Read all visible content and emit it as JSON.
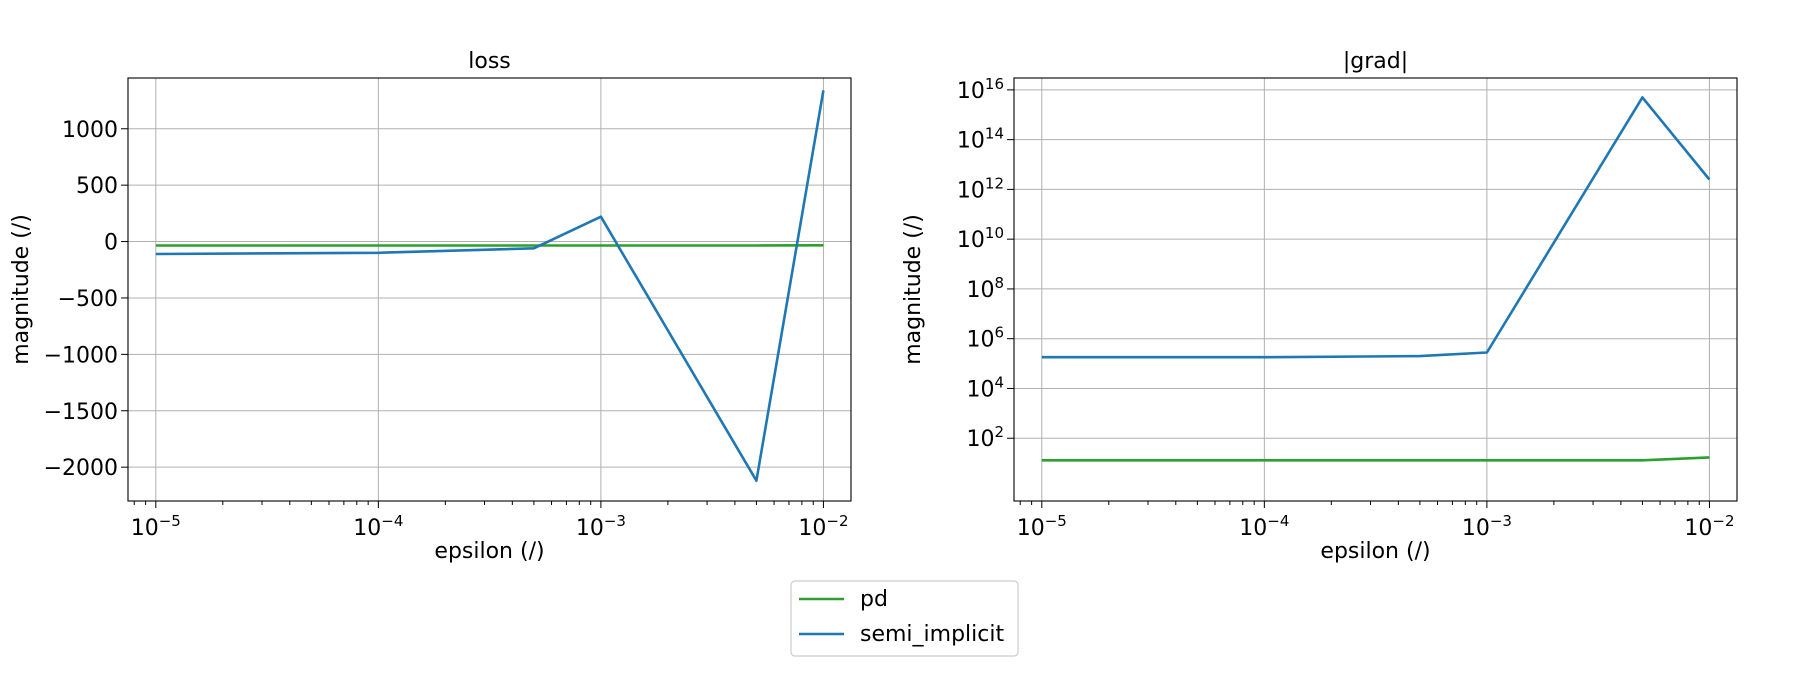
{
  "chart_data": [
    {
      "type": "line",
      "title": "loss",
      "xlabel": "epsilon (/)",
      "ylabel": "magnitude (/)",
      "xscale": "log",
      "yscale": "linear",
      "xlim": [
        7.5e-06,
        0.0133
      ],
      "ylim": [
        -2300,
        1450
      ],
      "grid": true,
      "xticks": [
        1e-05,
        0.0001,
        0.001,
        0.01
      ],
      "xtick_labels": [
        {
          "base": "10",
          "exp": "−5"
        },
        {
          "base": "10",
          "exp": "−4"
        },
        {
          "base": "10",
          "exp": "−3"
        },
        {
          "base": "10",
          "exp": "−2"
        }
      ],
      "yticks": [
        1000,
        500,
        0,
        -500,
        -1000,
        -1500,
        -2000
      ],
      "ytick_labels": [
        "1000",
        "500",
        "0",
        "−500",
        "−1000",
        "−1500",
        "−2000"
      ],
      "series": [
        {
          "name": "pd",
          "color": "#2ca02c",
          "x": [
            1e-05,
            0.0001,
            0.0005,
            0.001,
            0.005,
            0.01
          ],
          "y": [
            -35,
            -35,
            -35,
            -35,
            -35,
            -33
          ]
        },
        {
          "name": "semi_implicit",
          "color": "#1f77b4",
          "x": [
            1e-05,
            0.0001,
            0.0005,
            0.001,
            0.005,
            0.01
          ],
          "y": [
            -110,
            -100,
            -60,
            220,
            -2120,
            1340
          ]
        }
      ]
    },
    {
      "type": "line",
      "title": "|grad|",
      "xlabel": "epsilon (/)",
      "ylabel": "magnitude (/)",
      "xscale": "log",
      "yscale": "log",
      "xlim": [
        7.5e-06,
        0.0133
      ],
      "ylim": [
        0.3,
        3e+16
      ],
      "grid": true,
      "xticks": [
        1e-05,
        0.0001,
        0.001,
        0.01
      ],
      "xtick_labels": [
        {
          "base": "10",
          "exp": "−5"
        },
        {
          "base": "10",
          "exp": "−4"
        },
        {
          "base": "10",
          "exp": "−3"
        },
        {
          "base": "10",
          "exp": "−2"
        }
      ],
      "yticks": [
        1e+16,
        100000000000000.0,
        1000000000000.0,
        10000000000.0,
        100000000.0,
        1000000.0,
        10000.0,
        100.0
      ],
      "ytick_labels": [
        {
          "base": "10",
          "exp": "16"
        },
        {
          "base": "10",
          "exp": "14"
        },
        {
          "base": "10",
          "exp": "12"
        },
        {
          "base": "10",
          "exp": "10"
        },
        {
          "base": "10",
          "exp": "8"
        },
        {
          "base": "10",
          "exp": "6"
        },
        {
          "base": "10",
          "exp": "4"
        },
        {
          "base": "10",
          "exp": "2"
        }
      ],
      "series": [
        {
          "name": "pd",
          "color": "#2ca02c",
          "x": [
            1e-05,
            0.0001,
            0.0005,
            0.001,
            0.005,
            0.01
          ],
          "y": [
            13,
            13,
            13,
            13,
            13,
            17
          ]
        },
        {
          "name": "semi_implicit",
          "color": "#1f77b4",
          "x": [
            1e-05,
            0.0001,
            0.0005,
            0.001,
            0.005,
            0.01
          ],
          "y": [
            180000,
            180000,
            200000,
            280000,
            5000000000000000.0,
            2500000000000.0
          ]
        }
      ]
    }
  ],
  "legend": {
    "placement": "bottom-center",
    "entries": [
      {
        "label": "pd",
        "color": "#2ca02c"
      },
      {
        "label": "semi_implicit",
        "color": "#1f77b4"
      }
    ]
  }
}
